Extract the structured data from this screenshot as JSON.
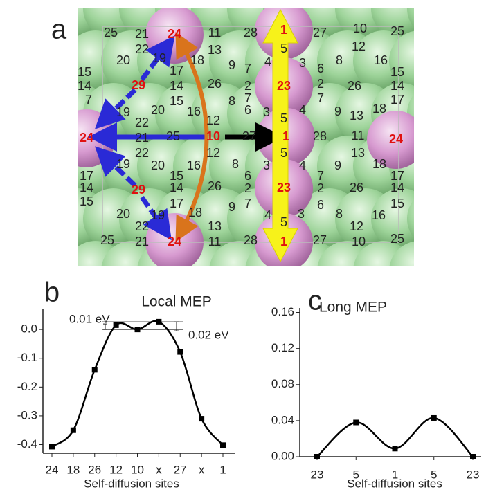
{
  "panel_a": {
    "label": "a",
    "site_labels": [
      "25",
      "21",
      "24",
      "11",
      "28",
      "1",
      "27",
      "10",
      "25",
      "22",
      "13",
      "5",
      "12",
      "20",
      "19",
      "18",
      "4",
      "3",
      "8",
      "16",
      "9",
      "7",
      "6",
      "15",
      "17",
      "15",
      "14",
      "29",
      "14",
      "26",
      "2",
      "23",
      "2",
      "26",
      "14",
      "7",
      "15",
      "8",
      "7",
      "7",
      "17",
      "19",
      "20",
      "16",
      "6",
      "3",
      "4",
      "9",
      "13",
      "18",
      "22",
      "12",
      "5",
      "24",
      "21",
      "25",
      "10",
      "27",
      "1",
      "28",
      "11",
      "24",
      "22",
      "12",
      "5",
      "13",
      "19",
      "20",
      "16",
      "8",
      "3",
      "4",
      "9",
      "18",
      "17",
      "15",
      "6",
      "7",
      "17",
      "14",
      "29",
      "14",
      "26",
      "2",
      "23",
      "2",
      "26",
      "14",
      "15",
      "17",
      "9",
      "7",
      "6",
      "15",
      "20",
      "19",
      "18",
      "4",
      "3",
      "8",
      "16",
      "22",
      "13",
      "5",
      "12",
      "25",
      "21",
      "24",
      "11",
      "28",
      "1",
      "27",
      "10",
      "25"
    ]
  },
  "chart_data": [
    {
      "type": "line",
      "panel_label": "b",
      "title": "Local MEP",
      "x_label": "Self-diffusion sites",
      "annotations": [
        "0.01 eV",
        "0.02 eV"
      ],
      "categories": [
        "24",
        "18",
        "26",
        "12",
        "10",
        "x",
        "27",
        "x",
        "1"
      ],
      "values": [
        -0.407,
        -0.35,
        -0.14,
        0.015,
        0.0,
        0.027,
        -0.078,
        -0.31,
        -0.402
      ],
      "color": "#000000",
      "ylim": [
        -0.43,
        0.07
      ],
      "yticks": [
        {
          "value": 0,
          "label": "0.0"
        },
        -0.1,
        -0.2,
        -0.3,
        -0.4
      ]
    },
    {
      "type": "line",
      "panel_label": "c",
      "title": "Long MEP",
      "x_label": "Self-diffusion sites",
      "categories": [
        "23",
        "5",
        "1",
        "5",
        "23"
      ],
      "values": [
        0.0,
        0.038,
        0.009,
        0.043,
        0.0
      ],
      "color": "#000000",
      "ylim": [
        0,
        0.165
      ],
      "yticks": [
        {
          "value": 0,
          "label": "0.00"
        },
        {
          "value": 0.04,
          "label": "0.04"
        },
        {
          "value": 0.08,
          "label": "0.08"
        },
        {
          "value": 0.12,
          "label": "0.12"
        },
        {
          "value": 0.16,
          "label": "0.16"
        }
      ]
    }
  ]
}
